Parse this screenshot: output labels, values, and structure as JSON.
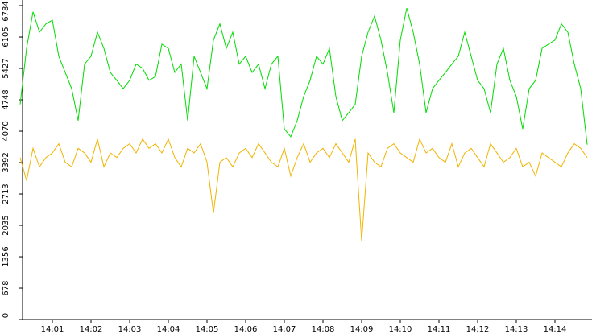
{
  "chart_data": {
    "type": "line",
    "categories": [
      null,
      null,
      null,
      null,
      null,
      "14:01",
      null,
      null,
      null,
      null,
      null,
      "14:02",
      null,
      null,
      null,
      null,
      null,
      "14:03",
      null,
      null,
      null,
      null,
      null,
      "14:04",
      null,
      null,
      null,
      null,
      null,
      "14:05",
      null,
      null,
      null,
      null,
      null,
      "14:06",
      null,
      null,
      null,
      null,
      null,
      "14:07",
      null,
      null,
      null,
      null,
      null,
      "14:08",
      null,
      null,
      null,
      null,
      null,
      "14:09",
      null,
      null,
      null,
      null,
      null,
      "14:10",
      null,
      null,
      null,
      null,
      null,
      "14:11",
      null,
      null,
      null,
      null,
      null,
      "14:12",
      null,
      null,
      null,
      null,
      null,
      "14:13",
      null,
      null,
      null,
      null,
      null,
      "14:14",
      null,
      null,
      null,
      null,
      null
    ],
    "series": [
      {
        "color": "#00dd00",
        "values": [
          4650,
          5860,
          6650,
          6210,
          6390,
          6470,
          5690,
          5340,
          4990,
          4300,
          5520,
          5690,
          6210,
          5860,
          5340,
          5170,
          4990,
          5170,
          5520,
          5430,
          5170,
          5250,
          5950,
          5860,
          5340,
          5520,
          4300,
          5690,
          5340,
          4990,
          6040,
          6390,
          5860,
          6210,
          5520,
          5690,
          5340,
          5520,
          4990,
          5520,
          5690,
          4120,
          3950,
          4300,
          4820,
          5170,
          5690,
          5520,
          5860,
          4820,
          4300,
          4470,
          4650,
          5690,
          6210,
          6560,
          6040,
          5340,
          4470,
          6040,
          6730,
          6210,
          5520,
          4470,
          4990,
          5170,
          5340,
          5520,
          5690,
          6210,
          5690,
          5170,
          4990,
          4470,
          5520,
          5860,
          5170,
          4820,
          4120,
          4990,
          5170,
          5860,
          5950,
          6040,
          6390,
          6210,
          5520,
          4990,
          3780
        ]
      },
      {
        "color": "#f0b400",
        "values": [
          3500,
          3000,
          3700,
          3300,
          3500,
          3600,
          3800,
          3400,
          3300,
          3700,
          3600,
          3400,
          3900,
          3300,
          3600,
          3500,
          3700,
          3800,
          3600,
          3900,
          3700,
          3800,
          3600,
          3900,
          3500,
          3300,
          3700,
          3600,
          3800,
          3400,
          2300,
          3400,
          3500,
          3300,
          3600,
          3700,
          3500,
          3800,
          3600,
          3400,
          3300,
          3700,
          3100,
          3500,
          3800,
          3400,
          3600,
          3700,
          3500,
          3800,
          3600,
          3400,
          3900,
          1700,
          3600,
          3400,
          3300,
          3700,
          3800,
          3600,
          3500,
          3400,
          3900,
          3600,
          3700,
          3500,
          3400,
          3800,
          3300,
          3600,
          3700,
          3500,
          3300,
          3800,
          3600,
          3400,
          3500,
          3700,
          3300,
          3400,
          3100,
          3600,
          3500,
          3400,
          3300,
          3600,
          3800,
          3700,
          3500
        ]
      }
    ],
    "ylim": [
      0,
      6784
    ],
    "yticks": [
      0,
      678,
      1356,
      2035,
      2713,
      3392,
      4070,
      4748,
      5427,
      6105,
      6784
    ]
  }
}
